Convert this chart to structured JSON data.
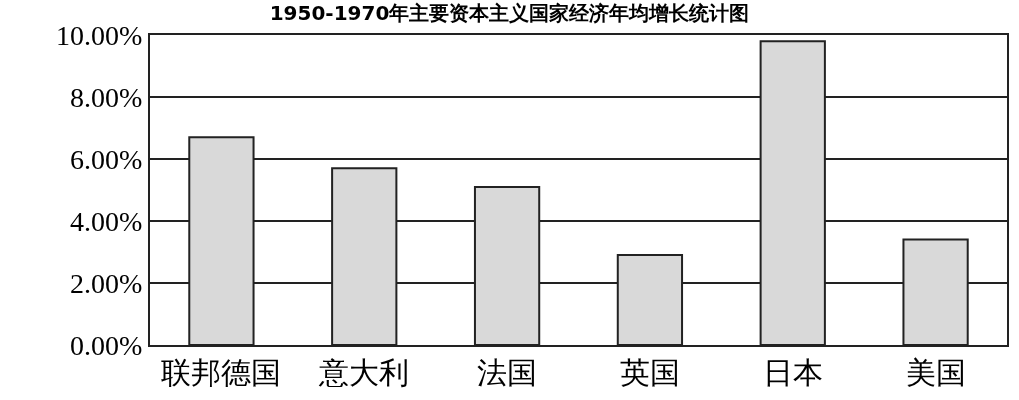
{
  "chart_data": {
    "type": "bar",
    "title": "1950-1970年主要资本主义国家经济年均增长统计图",
    "categories": [
      "联邦德国",
      "意大利",
      "法国",
      "英国",
      "日本",
      "美国"
    ],
    "values": [
      6.7,
      5.7,
      5.1,
      2.9,
      9.8,
      3.4
    ],
    "color": "#d9d9d9",
    "ylim": [
      0,
      10
    ],
    "yticks": [
      {
        "value": 0,
        "label": "0.00%"
      },
      {
        "value": 2,
        "label": "2.00%"
      },
      {
        "value": 4,
        "label": "4.00%"
      },
      {
        "value": 6,
        "label": "6.00%"
      },
      {
        "value": 8,
        "label": "8.00%"
      },
      {
        "value": 10,
        "label": "10.00%"
      }
    ],
    "grid": "y"
  }
}
